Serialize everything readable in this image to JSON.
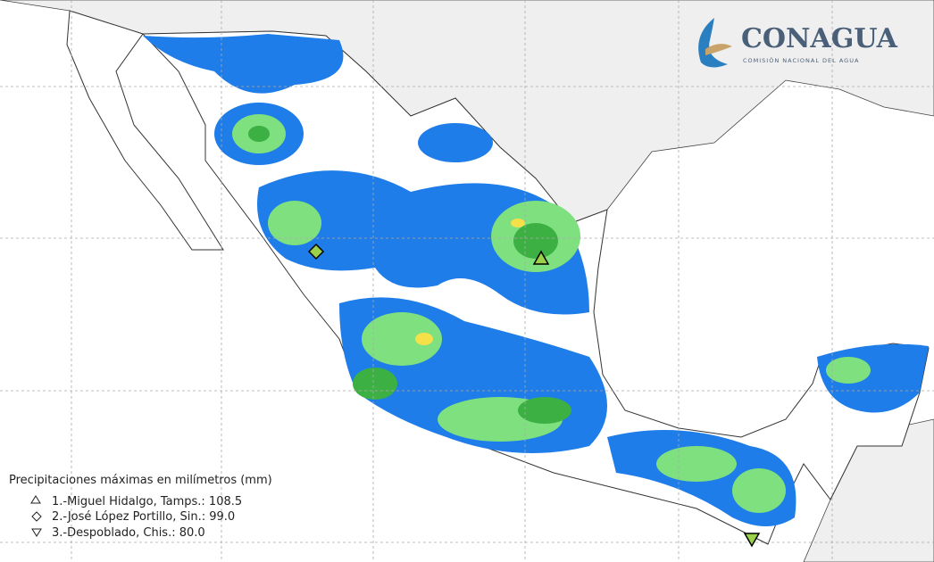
{
  "logo": {
    "name": "CONAGUA",
    "subtitle": "COMISIÓN NACIONAL DEL AGUA"
  },
  "legend": {
    "title": "Precipitaciones máximas en milímetros (mm)",
    "entries": [
      "1.-Miguel Hidalgo, Tamps.: 108.5",
      "2.-José López Portillo, Sin.: 99.0",
      "3.-Despoblado, Chis.: 80.0"
    ]
  }
}
